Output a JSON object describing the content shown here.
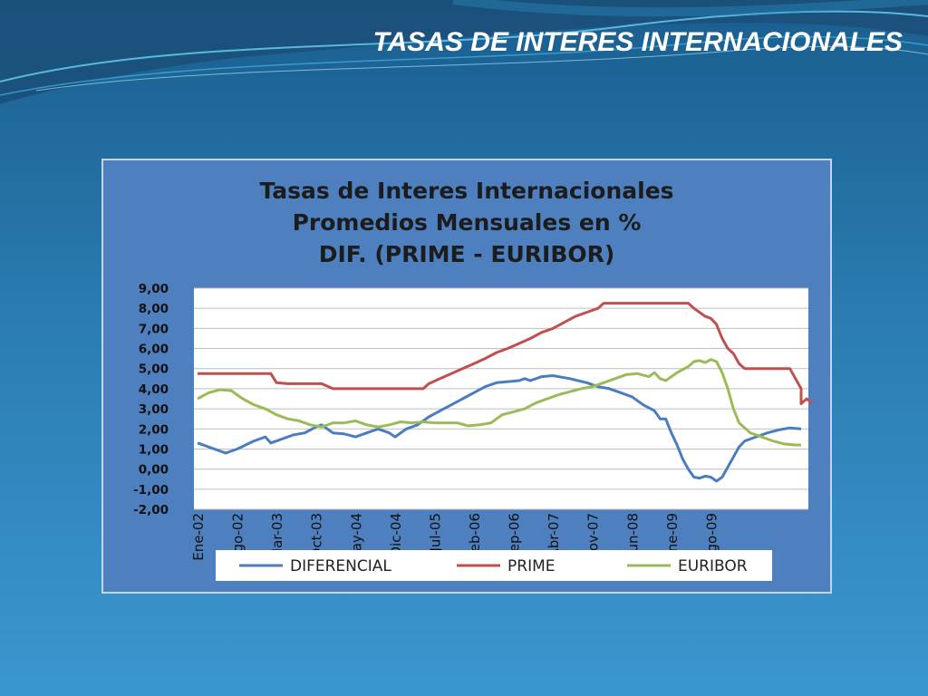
{
  "slide": {
    "title": "TASAS DE INTERES INTERNACIONALES"
  },
  "colors": {
    "diferencial": "#4a7dbf",
    "prime": "#c0504d",
    "euribor": "#9bbb59",
    "frame": "#4e80bf",
    "plot_bg": "#ffffff",
    "grid": "#bfbfbf"
  },
  "chart_data": {
    "type": "line",
    "title_lines": [
      "Tasas de Interes Internacionales",
      "Promedios Mensuales en %",
      "DIF. (PRIME - EURIBOR)"
    ],
    "xlabel": "",
    "ylabel": "",
    "ylim": [
      -2,
      9
    ],
    "yticks": [
      9,
      8,
      7,
      6,
      5,
      4,
      3,
      2,
      1,
      0,
      -1,
      -2
    ],
    "ytick_labels": [
      "9,00",
      "8,00",
      "7,00",
      "6,00",
      "5,00",
      "4,00",
      "3,00",
      "2,00",
      "1,00",
      "0,00",
      "-1,00",
      "-2,00"
    ],
    "x_labels": [
      "Ene-02",
      "Ago-02",
      "Mar-03",
      "Oct-03",
      "May-04",
      "Dic-04",
      "Jul-05",
      "Feb-06",
      "Sep-06",
      "Abr-07",
      "Nov-07",
      "Jun-08",
      "Ene-09",
      "Ago-09"
    ],
    "months": 96,
    "grid": true,
    "legend_position": "bottom",
    "series": [
      {
        "name": "DIFERENCIAL",
        "key": "diferencial",
        "points": [
          [
            0,
            1.3
          ],
          [
            3,
            1.0
          ],
          [
            5,
            0.8
          ],
          [
            7,
            1.0
          ],
          [
            10,
            1.4
          ],
          [
            12,
            1.6
          ],
          [
            13,
            1.3
          ],
          [
            14,
            1.4
          ],
          [
            17,
            1.7
          ],
          [
            19,
            1.8
          ],
          [
            21,
            2.1
          ],
          [
            22,
            2.2
          ],
          [
            24,
            1.8
          ],
          [
            26,
            1.75
          ],
          [
            28,
            1.6
          ],
          [
            30,
            1.8
          ],
          [
            32,
            2.0
          ],
          [
            34,
            1.8
          ],
          [
            35,
            1.6
          ],
          [
            37,
            2.0
          ],
          [
            39,
            2.2
          ],
          [
            41,
            2.6
          ],
          [
            43,
            2.9
          ],
          [
            45,
            3.2
          ],
          [
            47,
            3.5
          ],
          [
            49,
            3.8
          ],
          [
            51,
            4.1
          ],
          [
            53,
            4.3
          ],
          [
            55,
            4.35
          ],
          [
            57,
            4.4
          ],
          [
            58,
            4.5
          ],
          [
            59,
            4.4
          ],
          [
            61,
            4.6
          ],
          [
            63,
            4.65
          ],
          [
            66,
            4.5
          ],
          [
            69,
            4.3
          ],
          [
            71,
            4.1
          ],
          [
            73,
            4.0
          ],
          [
            75,
            3.8
          ],
          [
            77,
            3.6
          ],
          [
            79,
            3.2
          ],
          [
            81,
            2.9
          ],
          [
            82,
            2.5
          ],
          [
            83,
            2.5
          ],
          [
            84,
            1.8
          ],
          [
            85,
            1.2
          ],
          [
            86,
            0.5
          ],
          [
            87,
            0.0
          ],
          [
            88,
            -0.4
          ],
          [
            89,
            -0.45
          ],
          [
            90,
            -0.35
          ],
          [
            91,
            -0.4
          ],
          [
            92,
            -0.6
          ],
          [
            93,
            -0.4
          ],
          [
            94,
            0.1
          ],
          [
            95,
            0.6
          ],
          [
            96,
            1.1
          ],
          [
            97,
            1.4
          ],
          [
            99,
            1.6
          ],
          [
            101,
            1.8
          ],
          [
            103,
            1.95
          ],
          [
            105,
            2.05
          ],
          [
            107,
            2.0
          ]
        ]
      },
      {
        "name": "PRIME",
        "key": "prime",
        "points": [
          [
            0,
            4.75
          ],
          [
            10,
            4.75
          ],
          [
            13,
            4.75
          ],
          [
            14,
            4.3
          ],
          [
            16,
            4.25
          ],
          [
            22,
            4.25
          ],
          [
            24,
            4.0
          ],
          [
            40,
            4.0
          ],
          [
            41,
            4.25
          ],
          [
            43,
            4.5
          ],
          [
            45,
            4.75
          ],
          [
            47,
            5.0
          ],
          [
            49,
            5.25
          ],
          [
            51,
            5.5
          ],
          [
            53,
            5.8
          ],
          [
            55,
            6.0
          ],
          [
            57,
            6.25
          ],
          [
            59,
            6.5
          ],
          [
            61,
            6.8
          ],
          [
            63,
            7.0
          ],
          [
            65,
            7.3
          ],
          [
            67,
            7.6
          ],
          [
            69,
            7.8
          ],
          [
            71,
            8.0
          ],
          [
            72,
            8.25
          ],
          [
            87,
            8.25
          ],
          [
            88,
            8.0
          ],
          [
            90,
            7.6
          ],
          [
            91,
            7.5
          ],
          [
            92,
            7.2
          ],
          [
            93,
            6.5
          ],
          [
            94,
            6.0
          ],
          [
            95,
            5.75
          ],
          [
            96,
            5.25
          ],
          [
            97,
            5.0
          ],
          [
            105,
            5.0
          ],
          [
            106,
            4.5
          ],
          [
            107,
            4.0
          ],
          [
            108,
            3.5
          ],
          [
            109,
            3.25
          ],
          [
            107,
            3.25
          ]
        ]
      },
      {
        "name": "EURIBOR",
        "key": "euribor",
        "points": [
          [
            0,
            3.5
          ],
          [
            2,
            3.8
          ],
          [
            4,
            3.95
          ],
          [
            6,
            3.9
          ],
          [
            8,
            3.5
          ],
          [
            10,
            3.2
          ],
          [
            12,
            3.0
          ],
          [
            14,
            2.7
          ],
          [
            16,
            2.5
          ],
          [
            18,
            2.4
          ],
          [
            20,
            2.2
          ],
          [
            22,
            2.1
          ],
          [
            24,
            2.3
          ],
          [
            26,
            2.3
          ],
          [
            28,
            2.4
          ],
          [
            30,
            2.2
          ],
          [
            32,
            2.1
          ],
          [
            34,
            2.2
          ],
          [
            36,
            2.35
          ],
          [
            38,
            2.3
          ],
          [
            40,
            2.35
          ],
          [
            42,
            2.3
          ],
          [
            44,
            2.3
          ],
          [
            46,
            2.3
          ],
          [
            48,
            2.15
          ],
          [
            50,
            2.2
          ],
          [
            52,
            2.3
          ],
          [
            54,
            2.7
          ],
          [
            56,
            2.85
          ],
          [
            58,
            3.0
          ],
          [
            60,
            3.3
          ],
          [
            62,
            3.5
          ],
          [
            64,
            3.7
          ],
          [
            66,
            3.85
          ],
          [
            68,
            4.0
          ],
          [
            70,
            4.1
          ],
          [
            72,
            4.3
          ],
          [
            74,
            4.5
          ],
          [
            76,
            4.7
          ],
          [
            78,
            4.75
          ],
          [
            80,
            4.6
          ],
          [
            81,
            4.8
          ],
          [
            82,
            4.5
          ],
          [
            83,
            4.4
          ],
          [
            85,
            4.8
          ],
          [
            87,
            5.1
          ],
          [
            88,
            5.35
          ],
          [
            89,
            5.4
          ],
          [
            90,
            5.3
          ],
          [
            91,
            5.45
          ],
          [
            92,
            5.35
          ],
          [
            93,
            4.8
          ],
          [
            94,
            4.0
          ],
          [
            95,
            3.0
          ],
          [
            96,
            2.3
          ],
          [
            98,
            1.8
          ],
          [
            100,
            1.6
          ],
          [
            102,
            1.4
          ],
          [
            104,
            1.25
          ],
          [
            106,
            1.2
          ],
          [
            107,
            1.2
          ]
        ]
      }
    ]
  }
}
